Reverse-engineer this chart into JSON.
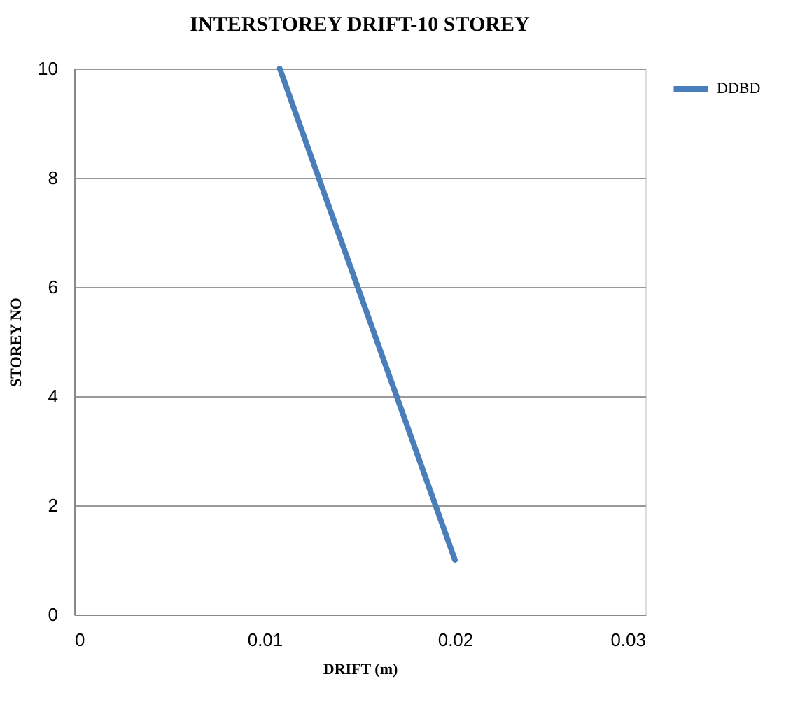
{
  "chart_data": {
    "type": "line",
    "title": "INTERSTOREY DRIFT-10 STOREY",
    "xlabel": "DRIFT (m)",
    "ylabel": "STOREY NO",
    "series": [
      {
        "name": "DDBD",
        "color": "#4a7ebb",
        "x": [
          0.02,
          0.0108
        ],
        "values": [
          1,
          10
        ]
      }
    ],
    "xlim": [
      0,
      0.03
    ],
    "xticks": [
      0,
      0.01,
      0.02,
      0.03
    ],
    "ylim": [
      0,
      10
    ],
    "yticks": [
      0,
      2,
      4,
      6,
      8,
      10
    ],
    "grid": "y",
    "legend": "right",
    "marker": "none",
    "line_style": "solid"
  }
}
